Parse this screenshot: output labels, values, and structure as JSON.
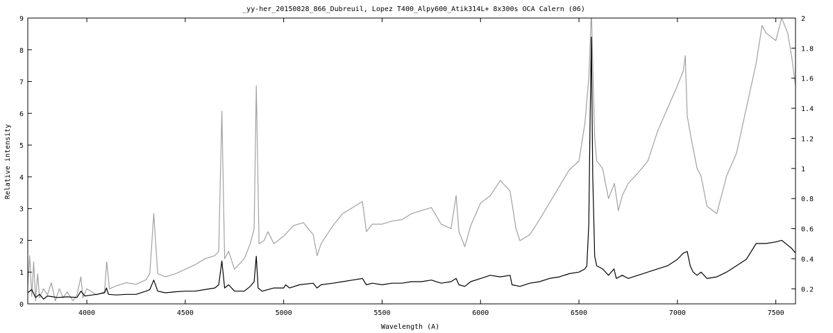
{
  "chart_data": {
    "type": "line",
    "title": "_yy-her_20150828_866_Dubreuil, Lopez  T400_Alpy600_Atik314L+  8x300s  OCA Calern (06)",
    "xlabel": "Wavelength (A)",
    "ylabel": "Relative intensity",
    "xlim": [
      3700,
      7600
    ],
    "ylim": [
      0,
      9
    ],
    "y2lim": [
      0.1,
      2.0
    ],
    "grid": false,
    "legend": "none",
    "x_ticks": [
      4000,
      4500,
      5000,
      5500,
      6000,
      6500,
      7000,
      7500
    ],
    "y_ticks": [
      0,
      1,
      2,
      3,
      4,
      5,
      6,
      7,
      8,
      9
    ],
    "y2_ticks": [
      0.2,
      0.4,
      0.6,
      0.8,
      1,
      1.2,
      1.4,
      1.6,
      1.8,
      2
    ],
    "series": [
      {
        "axis": "left",
        "color": "#000000",
        "x": [
          3700,
          3720,
          3740,
          3760,
          3780,
          3800,
          3850,
          3900,
          3950,
          3970,
          3990,
          4050,
          4090,
          4100,
          4110,
          4150,
          4200,
          4250,
          4300,
          4320,
          4340,
          4360,
          4400,
          4450,
          4500,
          4550,
          4600,
          4650,
          4670,
          4686,
          4700,
          4720,
          4750,
          4800,
          4830,
          4850,
          4861,
          4870,
          4890,
          4920,
          4950,
          5000,
          5010,
          5030,
          5080,
          5150,
          5169,
          5190,
          5250,
          5300,
          5350,
          5400,
          5420,
          5450,
          5500,
          5550,
          5600,
          5650,
          5700,
          5750,
          5800,
          5850,
          5876,
          5890,
          5920,
          5950,
          6000,
          6050,
          6100,
          6150,
          6160,
          6200,
          6250,
          6300,
          6350,
          6400,
          6450,
          6500,
          6530,
          6540,
          6550,
          6556,
          6563,
          6570,
          6580,
          6590,
          6620,
          6650,
          6678,
          6690,
          6720,
          6750,
          6800,
          6850,
          6900,
          6950,
          7000,
          7030,
          7050,
          7065,
          7080,
          7100,
          7120,
          7150,
          7200,
          7250,
          7300,
          7350,
          7400,
          7450,
          7500,
          7530,
          7560,
          7580,
          7600
        ],
        "y": [
          0.35,
          0.45,
          0.2,
          0.3,
          0.15,
          0.25,
          0.2,
          0.22,
          0.2,
          0.4,
          0.25,
          0.3,
          0.35,
          0.5,
          0.3,
          0.28,
          0.3,
          0.3,
          0.4,
          0.45,
          0.75,
          0.4,
          0.35,
          0.38,
          0.4,
          0.4,
          0.45,
          0.5,
          0.6,
          1.35,
          0.5,
          0.6,
          0.4,
          0.4,
          0.55,
          0.7,
          1.5,
          0.5,
          0.4,
          0.45,
          0.5,
          0.5,
          0.6,
          0.5,
          0.6,
          0.65,
          0.5,
          0.6,
          0.65,
          0.7,
          0.75,
          0.8,
          0.6,
          0.65,
          0.6,
          0.65,
          0.65,
          0.7,
          0.7,
          0.75,
          0.65,
          0.7,
          0.8,
          0.6,
          0.55,
          0.7,
          0.8,
          0.9,
          0.85,
          0.9,
          0.6,
          0.55,
          0.65,
          0.7,
          0.8,
          0.85,
          0.95,
          1.0,
          1.1,
          1.2,
          2.5,
          5.5,
          8.4,
          4.0,
          1.5,
          1.2,
          1.1,
          0.9,
          1.1,
          0.8,
          0.9,
          0.8,
          0.9,
          1.0,
          1.1,
          1.2,
          1.4,
          1.6,
          1.65,
          1.2,
          1.0,
          0.9,
          1.0,
          0.8,
          0.85,
          1.0,
          1.2,
          1.4,
          1.9,
          1.9,
          1.95,
          2.0,
          1.85,
          1.75,
          1.6
        ]
      },
      {
        "axis": "right",
        "color": "#a0a0a0",
        "x": [
          3700,
          3710,
          3720,
          3730,
          3740,
          3750,
          3760,
          3780,
          3800,
          3820,
          3840,
          3860,
          3880,
          3900,
          3930,
          3950,
          3970,
          3980,
          4000,
          4050,
          4090,
          4101,
          4115,
          4150,
          4200,
          4250,
          4300,
          4320,
          4340,
          4360,
          4400,
          4450,
          4500,
          4550,
          4600,
          4650,
          4670,
          4686,
          4700,
          4720,
          4750,
          4800,
          4830,
          4850,
          4861,
          4875,
          4900,
          4920,
          4950,
          5000,
          5050,
          5100,
          5150,
          5170,
          5190,
          5250,
          5300,
          5350,
          5400,
          5420,
          5450,
          5500,
          5550,
          5600,
          5650,
          5700,
          5750,
          5800,
          5850,
          5876,
          5890,
          5920,
          5950,
          6000,
          6050,
          6100,
          6150,
          6180,
          6200,
          6250,
          6300,
          6350,
          6400,
          6450,
          6500,
          6530,
          6540,
          6550,
          6556,
          6563,
          6570,
          6580,
          6590,
          6620,
          6650,
          6680,
          6700,
          6720,
          6750,
          6800,
          6850,
          6900,
          6950,
          7000,
          7030,
          7040,
          7050,
          7070,
          7100,
          7120,
          7150,
          7200,
          7250,
          7300,
          7350,
          7400,
          7430,
          7450,
          7500,
          7530,
          7560,
          7580,
          7600
        ],
        "y": [
          0.22,
          0.42,
          0.15,
          0.38,
          0.12,
          0.3,
          0.14,
          0.2,
          0.16,
          0.24,
          0.12,
          0.2,
          0.14,
          0.18,
          0.12,
          0.16,
          0.28,
          0.14,
          0.2,
          0.16,
          0.18,
          0.38,
          0.2,
          0.22,
          0.24,
          0.23,
          0.26,
          0.3,
          0.7,
          0.3,
          0.28,
          0.3,
          0.33,
          0.36,
          0.4,
          0.42,
          0.45,
          1.38,
          0.4,
          0.45,
          0.33,
          0.4,
          0.5,
          0.6,
          1.55,
          0.5,
          0.52,
          0.58,
          0.5,
          0.55,
          0.62,
          0.64,
          0.56,
          0.42,
          0.5,
          0.62,
          0.7,
          0.74,
          0.78,
          0.58,
          0.63,
          0.63,
          0.65,
          0.66,
          0.7,
          0.72,
          0.74,
          0.63,
          0.6,
          0.82,
          0.58,
          0.48,
          0.62,
          0.77,
          0.82,
          0.92,
          0.85,
          0.6,
          0.52,
          0.56,
          0.66,
          0.77,
          0.88,
          0.99,
          1.05,
          1.3,
          1.45,
          1.6,
          1.8,
          2.05,
          1.7,
          1.2,
          1.05,
          1.0,
          0.8,
          0.9,
          0.72,
          0.82,
          0.9,
          0.97,
          1.05,
          1.25,
          1.4,
          1.55,
          1.65,
          1.75,
          1.35,
          1.2,
          1.0,
          0.95,
          0.75,
          0.7,
          0.95,
          1.1,
          1.4,
          1.7,
          1.95,
          1.9,
          1.85,
          2.0,
          1.9,
          1.75,
          1.55
        ]
      }
    ]
  }
}
